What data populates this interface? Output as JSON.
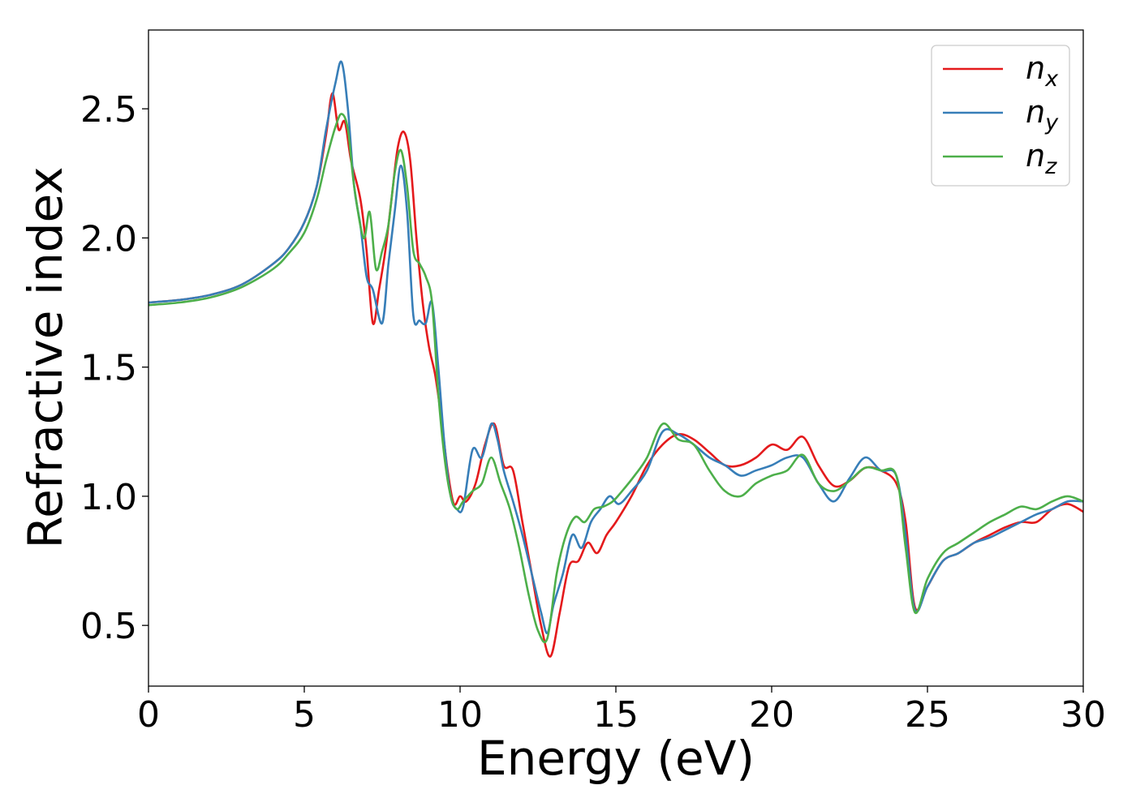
{
  "chart_data": {
    "type": "line",
    "title": "",
    "xlabel": "Energy (eV)",
    "ylabel": "Refractive index",
    "xlim": [
      0,
      30
    ],
    "ylim": [
      0.265,
      2.805
    ],
    "xticks": [
      0,
      5,
      10,
      15,
      20,
      25,
      30
    ],
    "xtick_labels": [
      "0",
      "5",
      "10",
      "15",
      "20",
      "25",
      "30"
    ],
    "yticks": [
      0.5,
      1.0,
      1.5,
      2.0,
      2.5
    ],
    "ytick_labels": [
      "0.5",
      "1.0",
      "1.5",
      "2.0",
      "2.5"
    ],
    "grid": false,
    "legend_position": "top-right",
    "series": [
      {
        "name": "n_x",
        "label_base": "n",
        "label_sub": "x",
        "color": "#e41a1c",
        "x": [
          0,
          1,
          2,
          3,
          4,
          4.5,
          5,
          5.4,
          5.7,
          5.9,
          6.1,
          6.3,
          6.5,
          6.8,
          7.0,
          7.2,
          7.4,
          7.6,
          7.8,
          8.0,
          8.2,
          8.4,
          8.6,
          8.8,
          9.0,
          9.2,
          9.4,
          9.6,
          9.8,
          10.0,
          10.2,
          10.5,
          10.8,
          11.1,
          11.4,
          11.7,
          12.0,
          12.3,
          12.6,
          12.9,
          13.2,
          13.5,
          13.8,
          14.1,
          14.4,
          14.7,
          15.0,
          15.5,
          16.0,
          16.5,
          17.0,
          17.5,
          18.0,
          18.5,
          19.0,
          19.5,
          20.0,
          20.5,
          21.0,
          21.5,
          22.0,
          22.5,
          23.0,
          23.5,
          24.0,
          24.3,
          24.6,
          25.0,
          25.5,
          26.0,
          26.5,
          27.0,
          27.5,
          28.0,
          28.5,
          29.0,
          29.5,
          30.0
        ],
        "y": [
          1.75,
          1.76,
          1.78,
          1.82,
          1.9,
          1.96,
          2.06,
          2.2,
          2.4,
          2.56,
          2.42,
          2.45,
          2.3,
          2.15,
          1.95,
          1.67,
          1.8,
          1.95,
          2.15,
          2.35,
          2.41,
          2.3,
          2.0,
          1.75,
          1.58,
          1.47,
          1.3,
          1.1,
          0.97,
          1.0,
          0.98,
          1.05,
          1.2,
          1.28,
          1.12,
          1.1,
          0.9,
          0.7,
          0.5,
          0.38,
          0.55,
          0.73,
          0.75,
          0.82,
          0.78,
          0.85,
          0.9,
          1.0,
          1.12,
          1.2,
          1.24,
          1.22,
          1.17,
          1.12,
          1.12,
          1.15,
          1.2,
          1.18,
          1.23,
          1.12,
          1.04,
          1.06,
          1.11,
          1.1,
          1.05,
          0.9,
          0.57,
          0.65,
          0.75,
          0.78,
          0.82,
          0.85,
          0.88,
          0.9,
          0.9,
          0.95,
          0.97,
          0.94
        ]
      },
      {
        "name": "n_y",
        "label_base": "n",
        "label_sub": "y",
        "color": "#377eb8",
        "x": [
          0,
          1,
          2,
          3,
          4,
          4.5,
          5,
          5.4,
          5.7,
          6.0,
          6.2,
          6.4,
          6.6,
          6.8,
          7.0,
          7.2,
          7.5,
          7.7,
          7.9,
          8.1,
          8.3,
          8.5,
          8.7,
          8.9,
          9.1,
          9.3,
          9.5,
          9.7,
          9.9,
          10.1,
          10.4,
          10.7,
          11.0,
          11.2,
          11.4,
          11.7,
          12.0,
          12.3,
          12.6,
          12.8,
          13.0,
          13.3,
          13.6,
          13.9,
          14.2,
          14.5,
          14.8,
          15.1,
          15.5,
          16.0,
          16.5,
          17.0,
          17.5,
          18.0,
          18.5,
          19.0,
          19.5,
          20.0,
          20.5,
          21.0,
          21.5,
          22.0,
          22.5,
          23.0,
          23.5,
          24.0,
          24.3,
          24.6,
          25.0,
          25.5,
          26.0,
          26.5,
          27.0,
          27.5,
          28.0,
          28.5,
          29.0,
          29.5,
          30.0
        ],
        "y": [
          1.75,
          1.76,
          1.78,
          1.82,
          1.9,
          1.96,
          2.06,
          2.2,
          2.42,
          2.6,
          2.68,
          2.5,
          2.2,
          2.05,
          1.85,
          1.8,
          1.67,
          1.9,
          2.1,
          2.28,
          2.1,
          1.7,
          1.68,
          1.67,
          1.75,
          1.5,
          1.2,
          1.0,
          0.95,
          0.96,
          1.18,
          1.15,
          1.28,
          1.22,
          1.1,
          0.98,
          0.85,
          0.7,
          0.55,
          0.47,
          0.58,
          0.7,
          0.85,
          0.8,
          0.9,
          0.95,
          1.0,
          0.97,
          1.02,
          1.1,
          1.25,
          1.24,
          1.2,
          1.15,
          1.12,
          1.08,
          1.1,
          1.12,
          1.15,
          1.15,
          1.05,
          0.98,
          1.07,
          1.15,
          1.1,
          1.08,
          0.85,
          0.56,
          0.65,
          0.75,
          0.78,
          0.82,
          0.84,
          0.87,
          0.9,
          0.93,
          0.95,
          0.98,
          0.98
        ]
      },
      {
        "name": "n_z",
        "label_base": "n",
        "label_sub": "z",
        "color": "#4daf4a",
        "x": [
          0,
          1,
          2,
          3,
          4,
          4.5,
          5,
          5.4,
          5.7,
          6.0,
          6.2,
          6.4,
          6.6,
          6.9,
          7.1,
          7.3,
          7.5,
          7.7,
          7.9,
          8.1,
          8.3,
          8.5,
          8.7,
          8.9,
          9.1,
          9.3,
          9.5,
          9.7,
          9.9,
          10.1,
          10.4,
          10.7,
          11.0,
          11.3,
          11.6,
          11.9,
          12.2,
          12.5,
          12.8,
          13.1,
          13.4,
          13.7,
          14.0,
          14.3,
          14.6,
          14.9,
          15.2,
          15.6,
          16.0,
          16.5,
          17.0,
          17.5,
          18.0,
          18.5,
          19.0,
          19.5,
          20.0,
          20.5,
          21.0,
          21.5,
          22.0,
          22.5,
          23.0,
          23.5,
          24.0,
          24.3,
          24.6,
          25.0,
          25.5,
          26.0,
          26.5,
          27.0,
          27.5,
          28.0,
          28.5,
          29.0,
          29.5,
          30.0
        ],
        "y": [
          1.74,
          1.75,
          1.77,
          1.81,
          1.88,
          1.94,
          2.02,
          2.15,
          2.3,
          2.43,
          2.48,
          2.42,
          2.2,
          2.0,
          2.1,
          1.88,
          1.95,
          2.05,
          2.25,
          2.34,
          2.2,
          1.95,
          1.9,
          1.85,
          1.75,
          1.4,
          1.15,
          1.0,
          0.95,
          0.98,
          1.02,
          1.05,
          1.15,
          1.05,
          0.95,
          0.8,
          0.62,
          0.48,
          0.45,
          0.7,
          0.85,
          0.92,
          0.9,
          0.95,
          0.96,
          0.98,
          1.02,
          1.08,
          1.15,
          1.28,
          1.22,
          1.2,
          1.1,
          1.02,
          1.0,
          1.05,
          1.08,
          1.1,
          1.16,
          1.05,
          1.02,
          1.06,
          1.11,
          1.1,
          1.08,
          0.8,
          0.55,
          0.68,
          0.78,
          0.82,
          0.86,
          0.9,
          0.93,
          0.96,
          0.95,
          0.98,
          1.0,
          0.98
        ]
      }
    ]
  }
}
